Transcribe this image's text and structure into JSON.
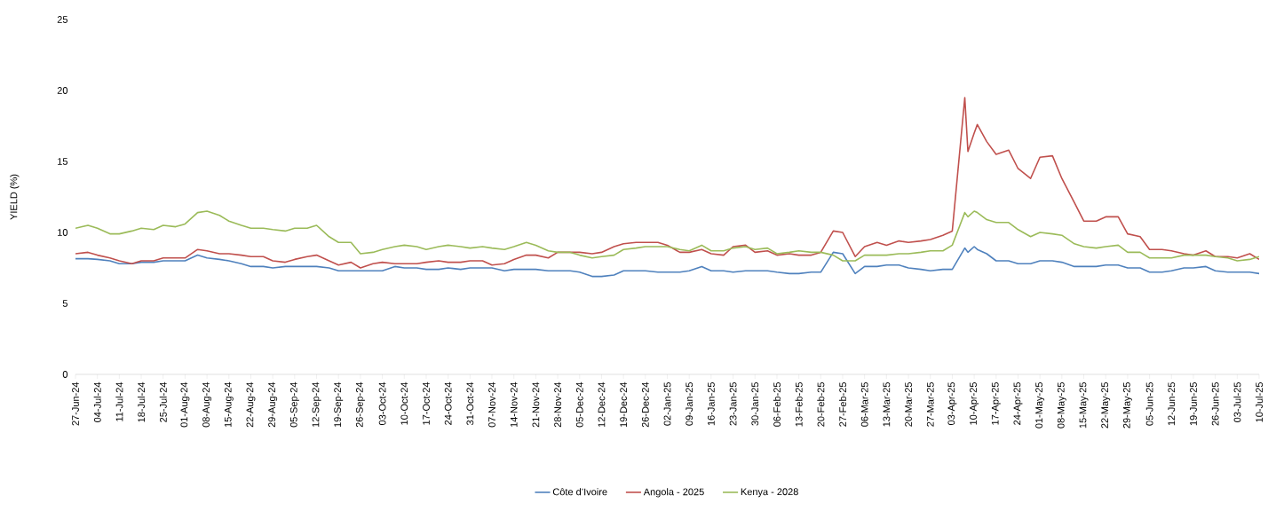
{
  "chart_data": {
    "type": "line",
    "ylabel": "YIELD (%)",
    "x": [
      "2024-06-27",
      "2024-07-01",
      "2024-07-04",
      "2024-07-08",
      "2024-07-11",
      "2024-07-15",
      "2024-07-18",
      "2024-07-22",
      "2024-07-25",
      "2024-07-29",
      "2024-08-01",
      "2024-08-05",
      "2024-08-08",
      "2024-08-12",
      "2024-08-15",
      "2024-08-19",
      "2024-08-22",
      "2024-08-26",
      "2024-08-29",
      "2024-09-02",
      "2024-09-05",
      "2024-09-09",
      "2024-09-12",
      "2024-09-16",
      "2024-09-19",
      "2024-09-23",
      "2024-09-26",
      "2024-09-30",
      "2024-10-03",
      "2024-10-07",
      "2024-10-10",
      "2024-10-14",
      "2024-10-17",
      "2024-10-21",
      "2024-10-24",
      "2024-10-28",
      "2024-10-31",
      "2024-11-04",
      "2024-11-07",
      "2024-11-11",
      "2024-11-14",
      "2024-11-18",
      "2024-11-21",
      "2024-11-25",
      "2024-11-28",
      "2024-12-02",
      "2024-12-05",
      "2024-12-09",
      "2024-12-12",
      "2024-12-16",
      "2024-12-19",
      "2024-12-23",
      "2024-12-26",
      "2024-12-30",
      "2025-01-02",
      "2025-01-06",
      "2025-01-09",
      "2025-01-13",
      "2025-01-16",
      "2025-01-20",
      "2025-01-23",
      "2025-01-27",
      "2025-01-30",
      "2025-02-03",
      "2025-02-06",
      "2025-02-10",
      "2025-02-13",
      "2025-02-17",
      "2025-02-20",
      "2025-02-24",
      "2025-02-27",
      "2025-03-03",
      "2025-03-06",
      "2025-03-10",
      "2025-03-13",
      "2025-03-17",
      "2025-03-20",
      "2025-03-24",
      "2025-03-27",
      "2025-03-31",
      "2025-04-03",
      "2025-04-07",
      "2025-04-08",
      "2025-04-10",
      "2025-04-11",
      "2025-04-14",
      "2025-04-17",
      "2025-04-21",
      "2025-04-24",
      "2025-04-28",
      "2025-05-01",
      "2025-05-05",
      "2025-05-08",
      "2025-05-12",
      "2025-05-15",
      "2025-05-19",
      "2025-05-22",
      "2025-05-26",
      "2025-05-29",
      "2025-06-02",
      "2025-06-05",
      "2025-06-09",
      "2025-06-12",
      "2025-06-16",
      "2025-06-19",
      "2025-06-23",
      "2025-06-26",
      "2025-06-30",
      "2025-07-03",
      "2025-07-07",
      "2025-07-10"
    ],
    "series": [
      {
        "name": "Côte d’Ivoire",
        "color": "#4f81bd",
        "values": [
          8.15,
          8.15,
          8.1,
          8.0,
          7.8,
          7.8,
          7.9,
          7.9,
          8.0,
          8.0,
          8.0,
          8.4,
          8.2,
          8.1,
          8.0,
          7.8,
          7.6,
          7.6,
          7.5,
          7.6,
          7.6,
          7.6,
          7.6,
          7.5,
          7.3,
          7.3,
          7.3,
          7.3,
          7.3,
          7.6,
          7.5,
          7.5,
          7.4,
          7.4,
          7.5,
          7.4,
          7.5,
          7.5,
          7.5,
          7.3,
          7.4,
          7.4,
          7.4,
          7.3,
          7.3,
          7.3,
          7.2,
          6.9,
          6.9,
          7.0,
          7.3,
          7.3,
          7.3,
          7.2,
          7.2,
          7.2,
          7.3,
          7.6,
          7.3,
          7.3,
          7.2,
          7.3,
          7.3,
          7.3,
          7.2,
          7.1,
          7.1,
          7.2,
          7.2,
          8.6,
          8.5,
          7.1,
          7.6,
          7.6,
          7.7,
          7.7,
          7.5,
          7.4,
          7.3,
          7.4,
          7.4,
          8.9,
          8.6,
          9.0,
          8.8,
          8.5,
          8.0,
          8.0,
          7.8,
          7.8,
          8.0,
          8.0,
          7.9,
          7.6,
          7.6,
          7.6,
          7.7,
          7.7,
          7.5,
          7.5,
          7.2,
          7.2,
          7.3,
          7.5,
          7.5,
          7.6,
          7.3,
          7.2,
          7.2,
          7.2,
          7.1
        ]
      },
      {
        "name": "Angola - 2025",
        "color": "#c0504d",
        "values": [
          8.5,
          8.6,
          8.4,
          8.2,
          8.0,
          7.8,
          8.0,
          8.0,
          8.2,
          8.2,
          8.2,
          8.8,
          8.7,
          8.5,
          8.5,
          8.4,
          8.3,
          8.3,
          8.0,
          7.9,
          8.1,
          8.3,
          8.4,
          8.0,
          7.7,
          7.9,
          7.5,
          7.8,
          7.9,
          7.8,
          7.8,
          7.8,
          7.9,
          8.0,
          7.9,
          7.9,
          8.0,
          8.0,
          7.7,
          7.8,
          8.1,
          8.4,
          8.4,
          8.2,
          8.6,
          8.6,
          8.6,
          8.5,
          8.6,
          9.0,
          9.2,
          9.3,
          9.3,
          9.3,
          9.1,
          8.6,
          8.6,
          8.8,
          8.5,
          8.4,
          9.0,
          9.1,
          8.6,
          8.7,
          8.4,
          8.5,
          8.4,
          8.4,
          8.6,
          10.1,
          10.0,
          8.3,
          9.0,
          9.3,
          9.1,
          9.4,
          9.3,
          9.4,
          9.5,
          9.8,
          10.1,
          19.5,
          15.7,
          17.0,
          17.6,
          16.4,
          15.5,
          15.8,
          14.5,
          13.8,
          15.3,
          15.4,
          13.8,
          12.1,
          10.8,
          10.8,
          11.1,
          11.1,
          9.9,
          9.7,
          8.8,
          8.8,
          8.7,
          8.5,
          8.4,
          8.7,
          8.3,
          8.3,
          8.2,
          8.5,
          8.1
        ]
      },
      {
        "name": "Kenya -  2028",
        "color": "#9bbb59",
        "values": [
          10.3,
          10.5,
          10.3,
          9.9,
          9.9,
          10.1,
          10.3,
          10.2,
          10.5,
          10.4,
          10.6,
          11.4,
          11.5,
          11.2,
          10.8,
          10.5,
          10.3,
          10.3,
          10.2,
          10.1,
          10.3,
          10.3,
          10.5,
          9.7,
          9.3,
          9.3,
          8.5,
          8.6,
          8.8,
          9.0,
          9.1,
          9.0,
          8.8,
          9.0,
          9.1,
          9.0,
          8.9,
          9.0,
          8.9,
          8.8,
          9.0,
          9.3,
          9.1,
          8.7,
          8.6,
          8.6,
          8.4,
          8.2,
          8.3,
          8.4,
          8.8,
          8.9,
          9.0,
          9.0,
          9.0,
          8.8,
          8.7,
          9.1,
          8.7,
          8.7,
          8.9,
          9.0,
          8.8,
          8.9,
          8.5,
          8.6,
          8.7,
          8.6,
          8.6,
          8.4,
          8.0,
          8.0,
          8.4,
          8.4,
          8.4,
          8.5,
          8.5,
          8.6,
          8.7,
          8.7,
          9.1,
          11.4,
          11.1,
          11.5,
          11.4,
          10.9,
          10.7,
          10.7,
          10.2,
          9.7,
          10.0,
          9.9,
          9.8,
          9.2,
          9.0,
          8.9,
          9.0,
          9.1,
          8.6,
          8.6,
          8.2,
          8.2,
          8.2,
          8.4,
          8.4,
          8.4,
          8.3,
          8.2,
          8.0,
          8.1,
          8.3
        ]
      }
    ],
    "xlim": [
      "2024-06-27",
      "2025-07-10"
    ],
    "xticks": [
      {
        "value": "2024-06-27",
        "label": "27-Jun-24"
      },
      {
        "value": "2024-07-04",
        "label": "04-Jul-24"
      },
      {
        "value": "2024-07-11",
        "label": "11-Jul-24"
      },
      {
        "value": "2024-07-18",
        "label": "18-Jul-24"
      },
      {
        "value": "2024-07-25",
        "label": "25-Jul-24"
      },
      {
        "value": "2024-08-01",
        "label": "01-Aug-24"
      },
      {
        "value": "2024-08-08",
        "label": "08-Aug-24"
      },
      {
        "value": "2024-08-15",
        "label": "15-Aug-24"
      },
      {
        "value": "2024-08-22",
        "label": "22-Aug-24"
      },
      {
        "value": "2024-08-29",
        "label": "29-Aug-24"
      },
      {
        "value": "2024-09-05",
        "label": "05-Sep-24"
      },
      {
        "value": "2024-09-12",
        "label": "12-Sep-24"
      },
      {
        "value": "2024-09-19",
        "label": "19-Sep-24"
      },
      {
        "value": "2024-09-26",
        "label": "26-Sep-24"
      },
      {
        "value": "2024-10-03",
        "label": "03-Oct-24"
      },
      {
        "value": "2024-10-10",
        "label": "10-Oct-24"
      },
      {
        "value": "2024-10-17",
        "label": "17-Oct-24"
      },
      {
        "value": "2024-10-24",
        "label": "24-Oct-24"
      },
      {
        "value": "2024-10-31",
        "label": "31-Oct-24"
      },
      {
        "value": "2024-11-07",
        "label": "07-Nov-24"
      },
      {
        "value": "2024-11-14",
        "label": "14-Nov-24"
      },
      {
        "value": "2024-11-21",
        "label": "21-Nov-24"
      },
      {
        "value": "2024-11-28",
        "label": "28-Nov-24"
      },
      {
        "value": "2024-12-05",
        "label": "05-Dec-24"
      },
      {
        "value": "2024-12-12",
        "label": "12-Dec-24"
      },
      {
        "value": "2024-12-19",
        "label": "19-Dec-24"
      },
      {
        "value": "2024-12-26",
        "label": "26-Dec-24"
      },
      {
        "value": "2025-01-02",
        "label": "02-Jan-25"
      },
      {
        "value": "2025-01-09",
        "label": "09-Jan-25"
      },
      {
        "value": "2025-01-16",
        "label": "16-Jan-25"
      },
      {
        "value": "2025-01-23",
        "label": "23-Jan-25"
      },
      {
        "value": "2025-01-30",
        "label": "30-Jan-25"
      },
      {
        "value": "2025-02-06",
        "label": "06-Feb-25"
      },
      {
        "value": "2025-02-13",
        "label": "13-Feb-25"
      },
      {
        "value": "2025-02-20",
        "label": "20-Feb-25"
      },
      {
        "value": "2025-02-27",
        "label": "27-Feb-25"
      },
      {
        "value": "2025-03-06",
        "label": "06-Mar-25"
      },
      {
        "value": "2025-03-13",
        "label": "13-Mar-25"
      },
      {
        "value": "2025-03-20",
        "label": "20-Mar-25"
      },
      {
        "value": "2025-03-27",
        "label": "27-Mar-25"
      },
      {
        "value": "2025-04-03",
        "label": "03-Apr-25"
      },
      {
        "value": "2025-04-10",
        "label": "10-Apr-25"
      },
      {
        "value": "2025-04-17",
        "label": "17-Apr-25"
      },
      {
        "value": "2025-04-24",
        "label": "24-Apr-25"
      },
      {
        "value": "2025-05-01",
        "label": "01-May-25"
      },
      {
        "value": "2025-05-08",
        "label": "08-May-25"
      },
      {
        "value": "2025-05-15",
        "label": "15-May-25"
      },
      {
        "value": "2025-05-22",
        "label": "22-May-25"
      },
      {
        "value": "2025-05-29",
        "label": "29-May-25"
      },
      {
        "value": "2025-06-05",
        "label": "05-Jun-25"
      },
      {
        "value": "2025-06-12",
        "label": "12-Jun-25"
      },
      {
        "value": "2025-06-19",
        "label": "19-Jun-25"
      },
      {
        "value": "2025-06-26",
        "label": "26-Jun-25"
      },
      {
        "value": "2025-07-03",
        "label": "03-Jul-25"
      },
      {
        "value": "2025-07-10",
        "label": "10-Jul-25"
      }
    ],
    "ylim": [
      0,
      25
    ],
    "yticks": [
      0,
      5,
      10,
      15,
      20,
      25
    ],
    "legend": "bottom",
    "grid": false
  }
}
